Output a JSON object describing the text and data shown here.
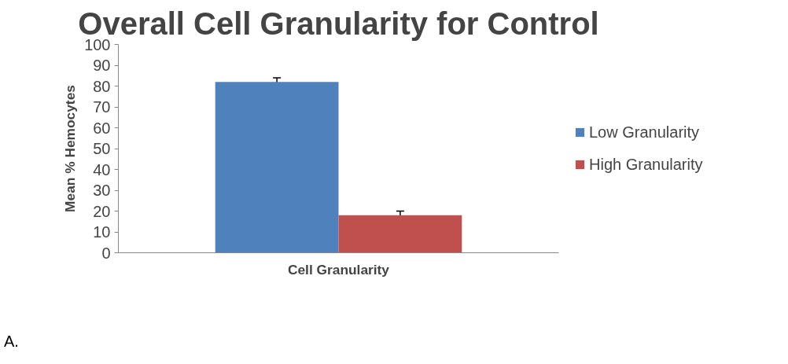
{
  "chart_data": {
    "type": "bar",
    "title": "Overall Cell Granularity for Control",
    "xlabel": "Cell Granularity",
    "ylabel": "Mean % Hemocytes",
    "categories": [
      null
    ],
    "series": [
      {
        "name": "Low Granularity",
        "color": "#4f81bd",
        "values": [
          82
        ],
        "errors": [
          2
        ]
      },
      {
        "name": "High Granularity",
        "color": "#c0504d",
        "values": [
          18
        ],
        "errors": [
          2
        ]
      }
    ],
    "ylim": [
      0,
      100
    ],
    "yticks": [
      0,
      10,
      20,
      30,
      40,
      50,
      60,
      70,
      80,
      90,
      100
    ],
    "grid": false,
    "legend": "right",
    "tick_labels": "y",
    "annotations": [
      "A."
    ]
  }
}
